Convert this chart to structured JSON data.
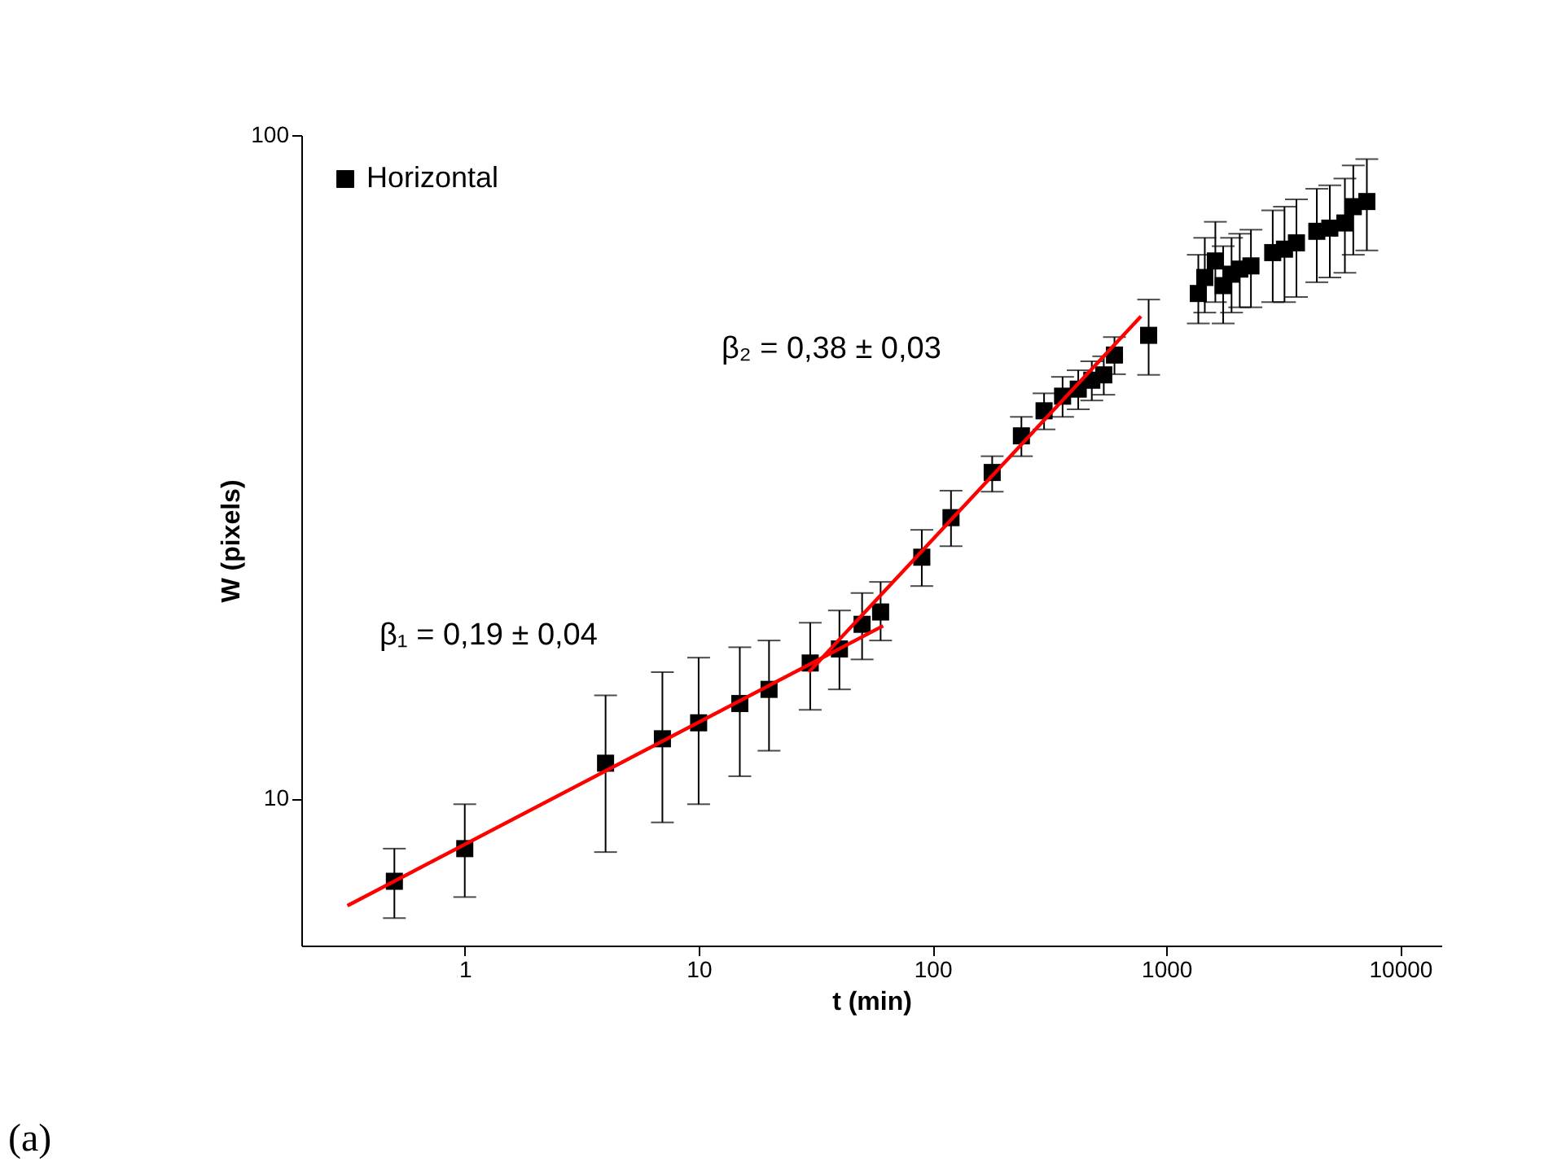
{
  "chart_data": {
    "type": "scatter",
    "xlabel": "t (min)",
    "ylabel": "W (pixels)",
    "log": "xy",
    "xlim": [
      0.2,
      15000
    ],
    "ylim": [
      6,
      100
    ],
    "xticks": [
      1,
      10,
      100,
      1000,
      10000
    ],
    "yticks": [
      10,
      100
    ],
    "grid": false,
    "legend": "top left",
    "marker": "square",
    "series": [
      {
        "name": "Horizontal",
        "color": "#000000",
        "x": [
          0.5,
          1,
          4,
          7,
          10,
          15,
          20,
          30,
          40,
          50,
          60,
          90,
          120,
          180,
          240,
          300,
          360,
          420,
          480,
          540,
          600,
          840,
          1370,
          1460,
          1620,
          1750,
          1900,
          2060,
          2300,
          2850,
          3200,
          3600,
          4400,
          5000,
          5800,
          6300,
          7200
        ],
        "values": [
          7.5,
          8.4,
          11.3,
          12.3,
          13.0,
          13.9,
          14.6,
          16.0,
          16.8,
          18.3,
          19.1,
          23.1,
          26.5,
          31.0,
          35.2,
          38.4,
          40.4,
          41.4,
          42.7,
          43.5,
          46.6,
          49.9,
          57.7,
          61.0,
          64.6,
          59.3,
          61.7,
          62.8,
          63.5,
          66.5,
          67.3,
          68.8,
          71.6,
          72.4,
          73.7,
          78.0,
          79.4
        ],
        "errors": [
          [
            6.6,
            8.4
          ],
          [
            7.1,
            9.8
          ],
          [
            8.3,
            14.3
          ],
          [
            9.2,
            15.5
          ],
          [
            9.8,
            16.3
          ],
          [
            10.8,
            16.9
          ],
          [
            11.8,
            17.3
          ],
          [
            13.6,
            18.4
          ],
          [
            14.6,
            19.2
          ],
          [
            16.2,
            20.4
          ],
          [
            17.3,
            21.2
          ],
          [
            20.9,
            25.4
          ],
          [
            24.0,
            29.1
          ],
          [
            29.0,
            32.8
          ],
          [
            32.8,
            37.6
          ],
          [
            36.0,
            40.8
          ],
          [
            37.6,
            43.2
          ],
          [
            38.6,
            44.2
          ],
          [
            39.8,
            45.6
          ],
          [
            40.6,
            46.4
          ],
          [
            43.6,
            49.6
          ],
          [
            43.5,
            56.5
          ],
          [
            52,
            66
          ],
          [
            54,
            70
          ],
          [
            56,
            74
          ],
          [
            52,
            68
          ],
          [
            54,
            70
          ],
          [
            55,
            71
          ],
          [
            55,
            72
          ],
          [
            56,
            77
          ],
          [
            56,
            78
          ],
          [
            57,
            80
          ],
          [
            60,
            83
          ],
          [
            61,
            84
          ],
          [
            62,
            86
          ],
          [
            66,
            90
          ],
          [
            67,
            92
          ]
        ]
      },
      {
        "type": "line",
        "color": "#ff0000",
        "line_style": "solid",
        "marker": "none",
        "x": [
          0.315,
          61.5
        ],
        "values": [
          6.89,
          18.2
        ]
      },
      {
        "type": "line",
        "color": "#ff0000",
        "line_style": "solid",
        "marker": "none",
        "x": [
          29.6,
          779
        ],
        "values": [
          15.5,
          53.3
        ]
      }
    ],
    "annotations": [
      "β₁ = 0,19 ± 0,04",
      "β₂ = 0,38 ± 0,03",
      "(a)"
    ]
  }
}
